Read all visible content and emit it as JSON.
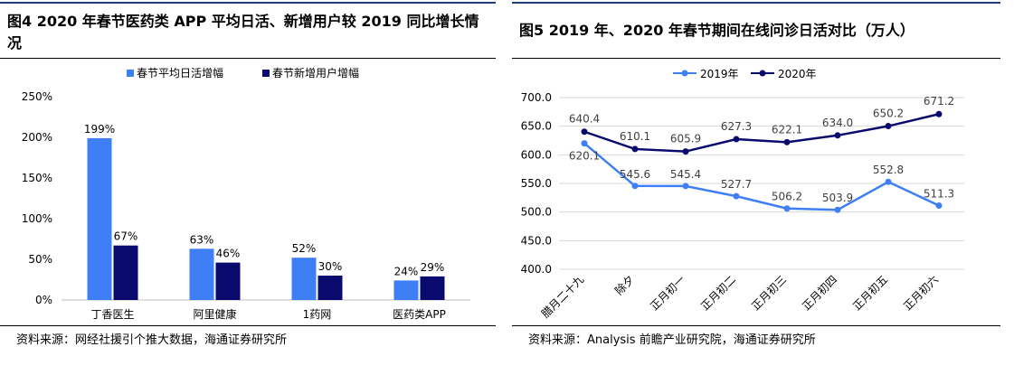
{
  "left": {
    "title": "图4  2020 年春节医药类 APP 平均日活、新增用户较 2019 同比增长情况",
    "source": "资料来源：网经社援引个推大数据，海通证券研究所"
  },
  "right": {
    "title": "图5  2019 年、2020 年春节期间在线问诊日活对比（万人）",
    "source": "资料来源：Analysis 前瞻产业研究院，海通证券研究所"
  },
  "chart_data": [
    {
      "type": "bar",
      "categories": [
        "丁香医生",
        "阿里健康",
        "1药网",
        "医药类APP"
      ],
      "series": [
        {
          "name": "春节平均日活增幅",
          "values": [
            199,
            63,
            52,
            24
          ],
          "labels": [
            "199%",
            "63%",
            "52%",
            "24%"
          ],
          "color": "#3f7ff5"
        },
        {
          "name": "春节新增用户增幅",
          "values": [
            67,
            46,
            30,
            29
          ],
          "labels": [
            "67%",
            "46%",
            "30%",
            "29%"
          ],
          "color": "#0a0a6e"
        }
      ],
      "yticks": [
        "0%",
        "50%",
        "100%",
        "150%",
        "200%",
        "250%"
      ],
      "ylim": [
        0,
        250
      ],
      "legend": "top"
    },
    {
      "type": "line",
      "categories": [
        "腊月二十九",
        "除夕",
        "正月初一",
        "正月初二",
        "正月初三",
        "正月初四",
        "正月初五",
        "正月初六"
      ],
      "series": [
        {
          "name": "2019年",
          "values": [
            620.1,
            545.6,
            545.4,
            527.7,
            506.2,
            503.9,
            552.8,
            511.3
          ],
          "labels": [
            "620.1",
            "545.6",
            "545.4",
            "527.7",
            "506.2",
            "503.9",
            "552.8",
            "511.3"
          ],
          "color": "#3f7ff5"
        },
        {
          "name": "2020年",
          "values": [
            640.4,
            610.1,
            605.9,
            627.3,
            622.1,
            634.0,
            650.2,
            671.2
          ],
          "labels": [
            "640.4",
            "610.1",
            "605.9",
            "627.3",
            "622.1",
            "634.0",
            "650.2",
            "671.2"
          ],
          "color": "#0a0a6e"
        }
      ],
      "yticks": [
        "400.0",
        "450.0",
        "500.0",
        "550.0",
        "600.0",
        "650.0",
        "700.0"
      ],
      "ylim": [
        400,
        700
      ],
      "legend": "top"
    }
  ]
}
